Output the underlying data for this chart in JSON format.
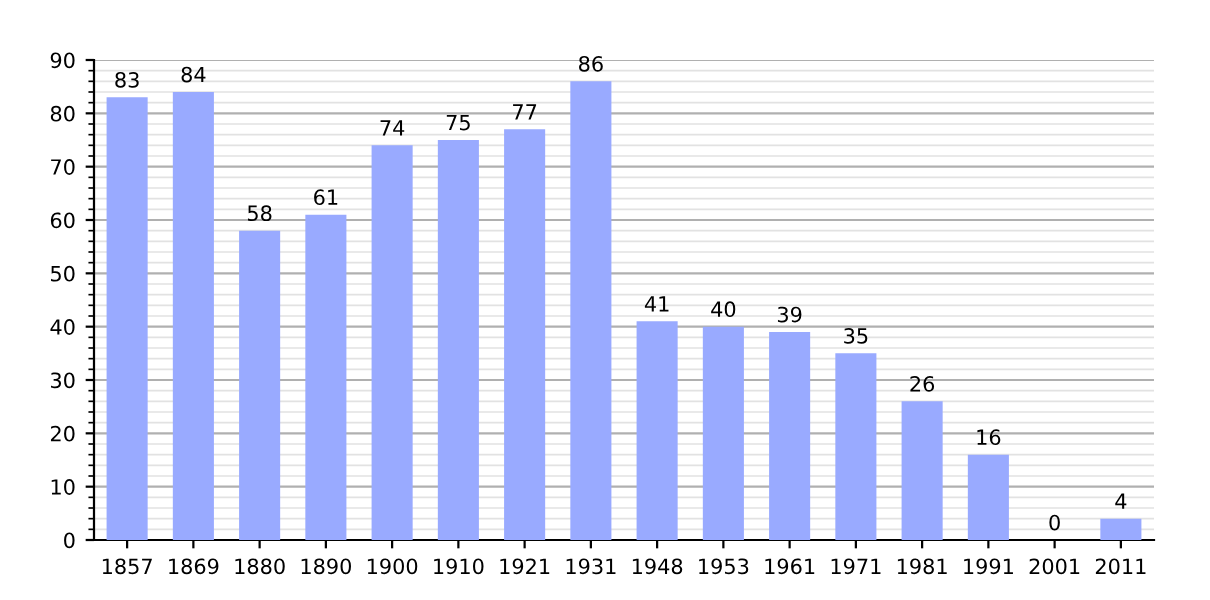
{
  "chart_data": {
    "type": "bar",
    "categories": [
      "1857",
      "1869",
      "1880",
      "1890",
      "1900",
      "1910",
      "1921",
      "1931",
      "1948",
      "1953",
      "1961",
      "1971",
      "1981",
      "1991",
      "2001",
      "2011"
    ],
    "values": [
      83,
      84,
      58,
      61,
      74,
      75,
      77,
      86,
      41,
      40,
      39,
      35,
      26,
      16,
      0,
      4
    ],
    "color": "#99aaff",
    "data_labels": true,
    "ylim": [
      0,
      90
    ],
    "yticks": [
      0,
      10,
      20,
      30,
      40,
      50,
      60,
      70,
      80,
      90
    ],
    "grid": "y"
  }
}
